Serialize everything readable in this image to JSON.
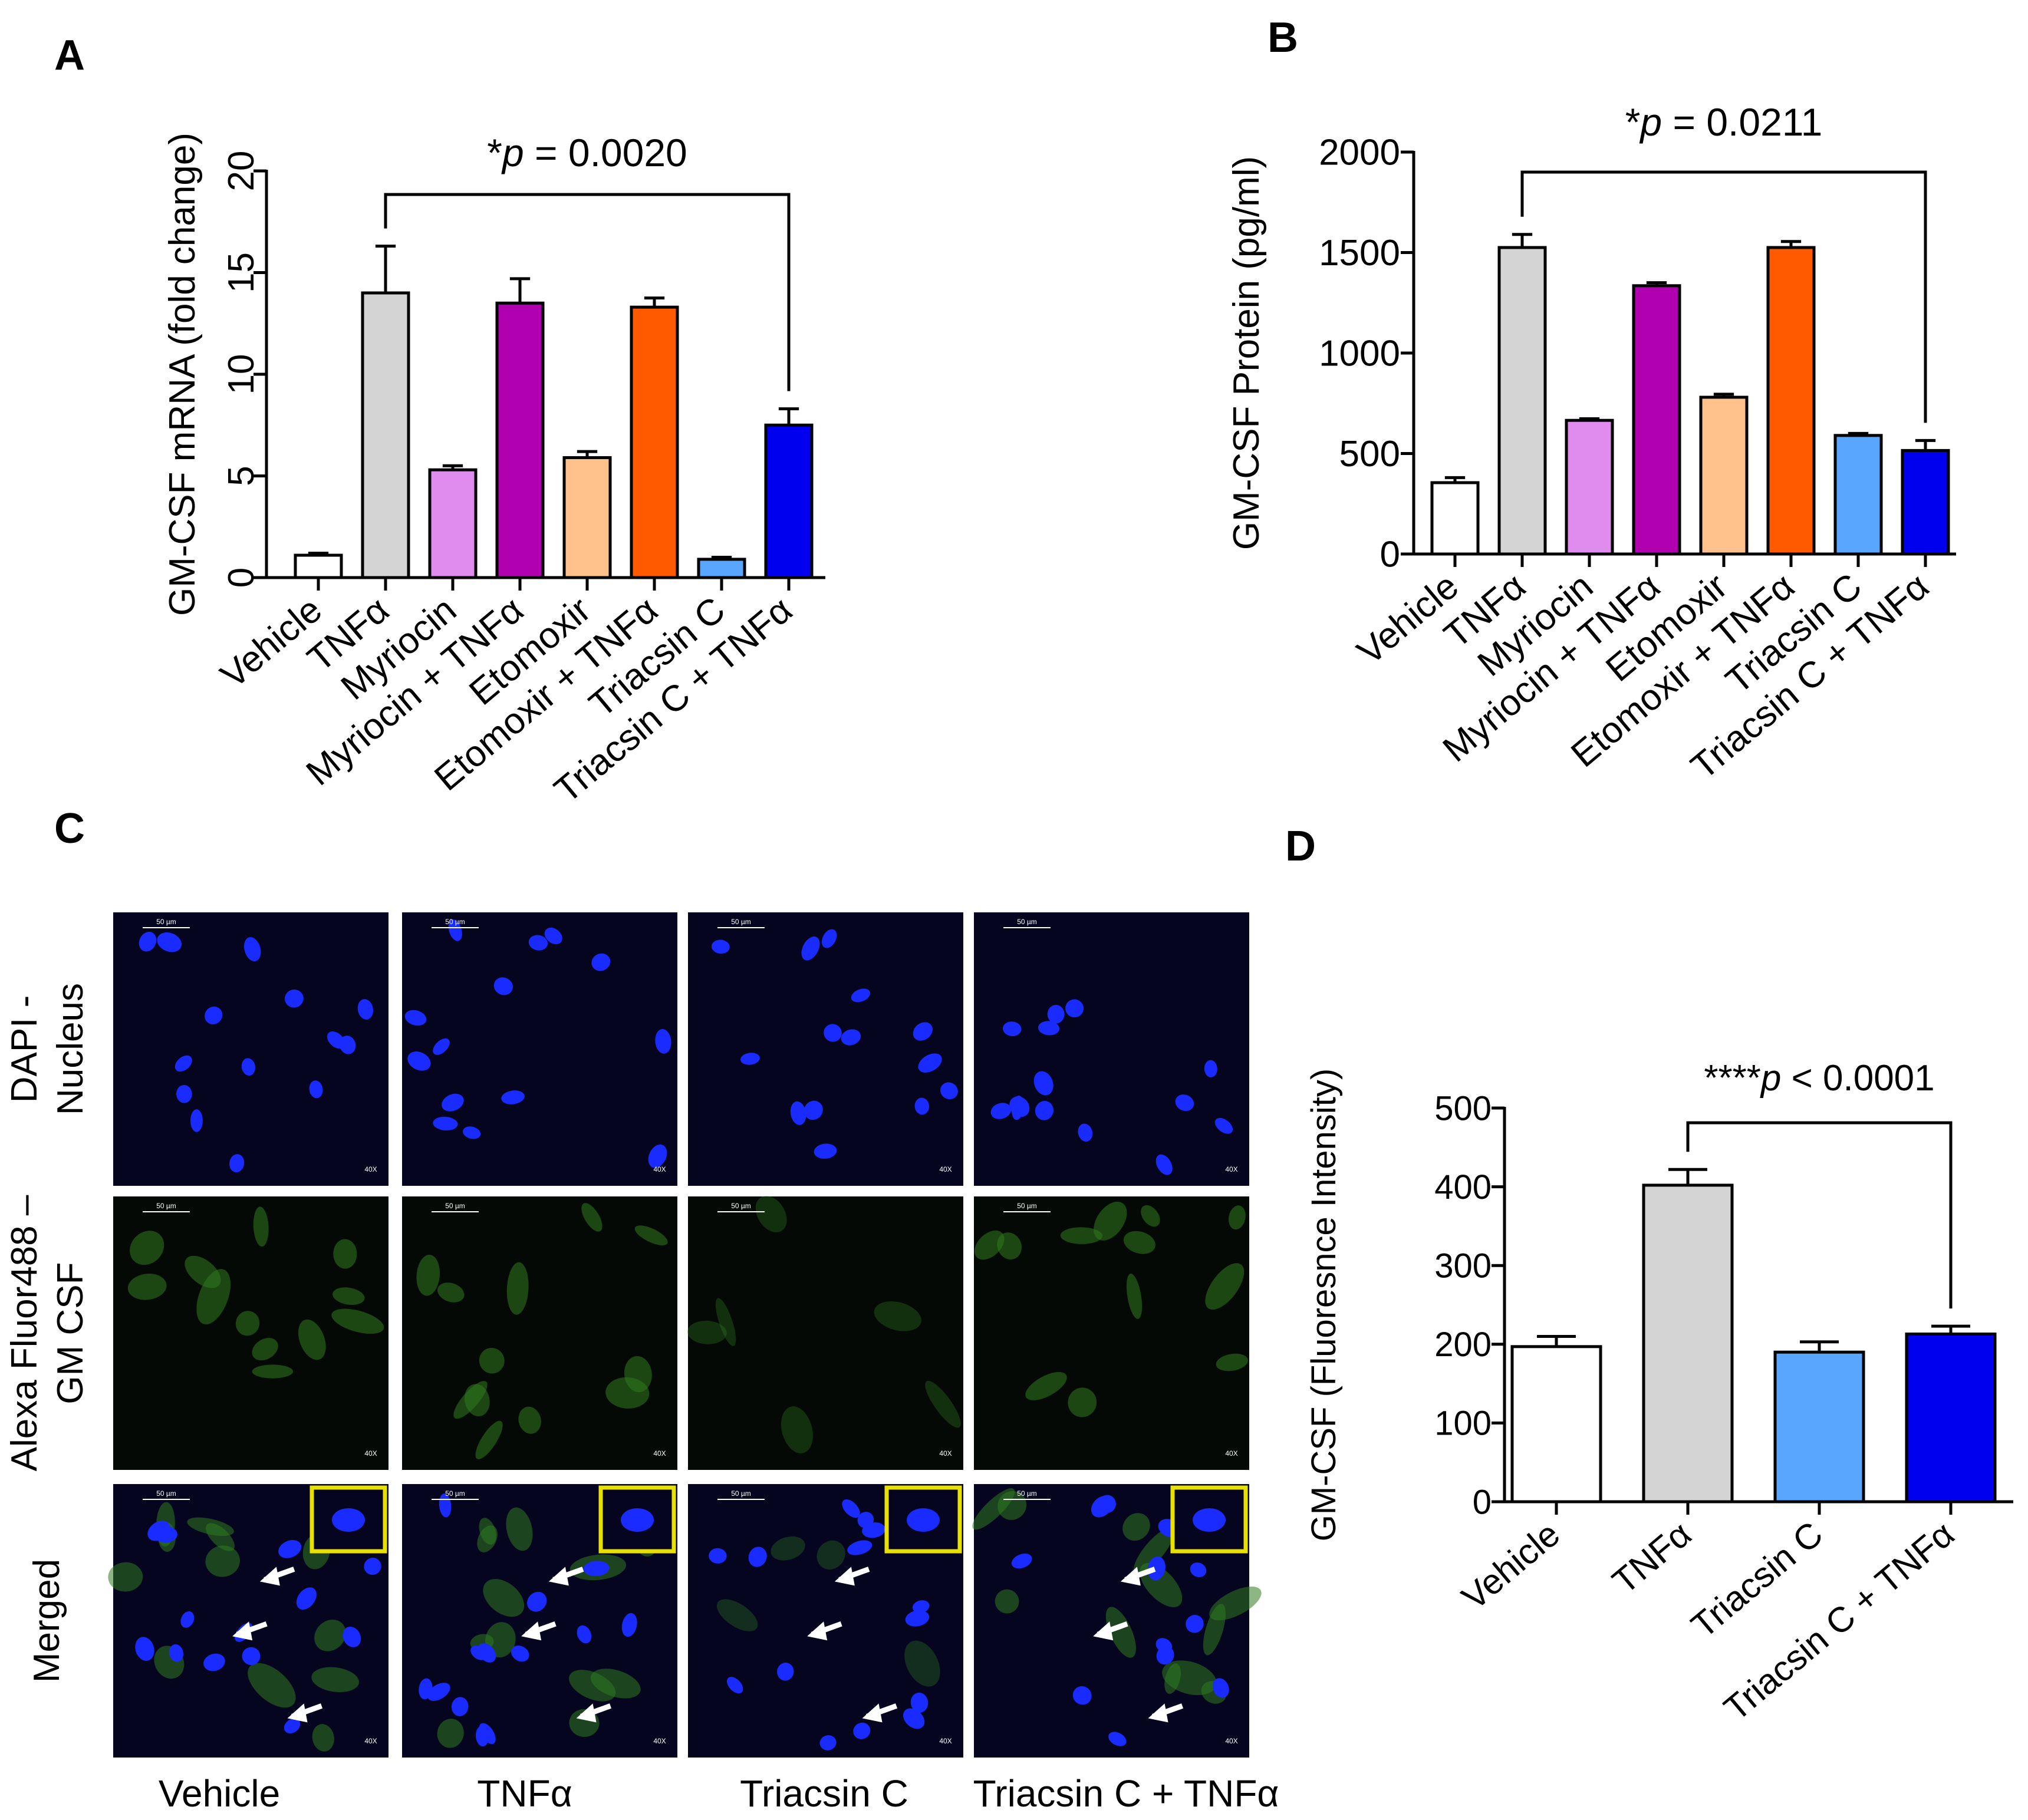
{
  "panels": {
    "a": "A",
    "b": "B",
    "c": "C",
    "d": "D"
  },
  "chart_data": [
    {
      "type": "bar",
      "panel": "A",
      "ylabel": "GM-CSF mRNA (fold change)",
      "ylim": [
        0,
        20
      ],
      "yticks": [
        0,
        5,
        10,
        15,
        20
      ],
      "categories": [
        "Vehicle",
        "TNFα",
        "Myriocin",
        "Myriocin + TNFα",
        "Etomoxir",
        "Etomoxir + TNFα",
        "Triacsin C",
        "Triacsin C + TNFα"
      ],
      "values": [
        1.1,
        14.0,
        5.3,
        13.5,
        5.9,
        13.3,
        0.9,
        7.5
      ],
      "errors": [
        0.1,
        2.3,
        0.2,
        1.2,
        0.3,
        0.45,
        0.1,
        0.8
      ],
      "colors": [
        "#ffffff",
        "#d4d4d4",
        "#e08cef",
        "#b000b0",
        "#ffc28c",
        "#ff5a00",
        "#58a6ff",
        "#0000ee"
      ],
      "annotation": {
        "stars": "*",
        "p": "p",
        "text": " = 0.0020",
        "from": 1,
        "to": 7
      }
    },
    {
      "type": "bar",
      "panel": "B",
      "ylabel": "GM-CSF Protein (pg/ml)",
      "ylim": [
        0,
        2000
      ],
      "yticks": [
        0,
        500,
        1000,
        1500,
        2000
      ],
      "categories": [
        "Vehicle",
        "TNFα",
        "Myriocin",
        "Myriocin + TNFα",
        "Etomoxir",
        "Etomoxir + TNFα",
        "Triacsin C",
        "Triacsin C + TNFα"
      ],
      "values": [
        355,
        1525,
        665,
        1335,
        780,
        1525,
        590,
        515
      ],
      "errors": [
        25,
        65,
        8,
        15,
        15,
        30,
        10,
        50
      ],
      "colors": [
        "#ffffff",
        "#d4d4d4",
        "#e08cef",
        "#b000b0",
        "#ffc28c",
        "#ff5a00",
        "#58a6ff",
        "#0000ee"
      ],
      "annotation": {
        "stars": "*",
        "p": "p",
        "text": " = 0.0211",
        "from": 1,
        "to": 7
      }
    },
    {
      "type": "bar",
      "panel": "D",
      "ylabel": "GM-CSF (Fluoresnce Intensity)",
      "ylim": [
        0,
        500
      ],
      "yticks": [
        0,
        100,
        200,
        300,
        400,
        500
      ],
      "categories": [
        "Vehicle",
        "TNFα",
        "Triacsin C",
        "Triacsin C + TNFα"
      ],
      "values": [
        197,
        402,
        190,
        213
      ],
      "errors": [
        13,
        20,
        13,
        10
      ],
      "colors": [
        "#ffffff",
        "#d4d4d4",
        "#58a6ff",
        "#0000ee"
      ],
      "annotation": {
        "stars": "****",
        "p": "p",
        "text": " < 0.0001",
        "from": 1,
        "to": 3
      }
    }
  ],
  "micrographs": {
    "row_labels": [
      [
        "DAPI -",
        "Nucleus"
      ],
      [
        "Alexa Fluor488 –",
        "GM CSF"
      ],
      [
        "Merged"
      ]
    ],
    "column_labels": [
      "Vehicle",
      "TNFα",
      "Triacsin C",
      "Triacsin C + TNFα"
    ],
    "scale_bar_label": "50 µm",
    "magnification_label": "40X",
    "nucleus_color": "#1a2bff",
    "cytoplasm_color": "#2f7a1f",
    "inset_border_color": "#e8e000"
  }
}
